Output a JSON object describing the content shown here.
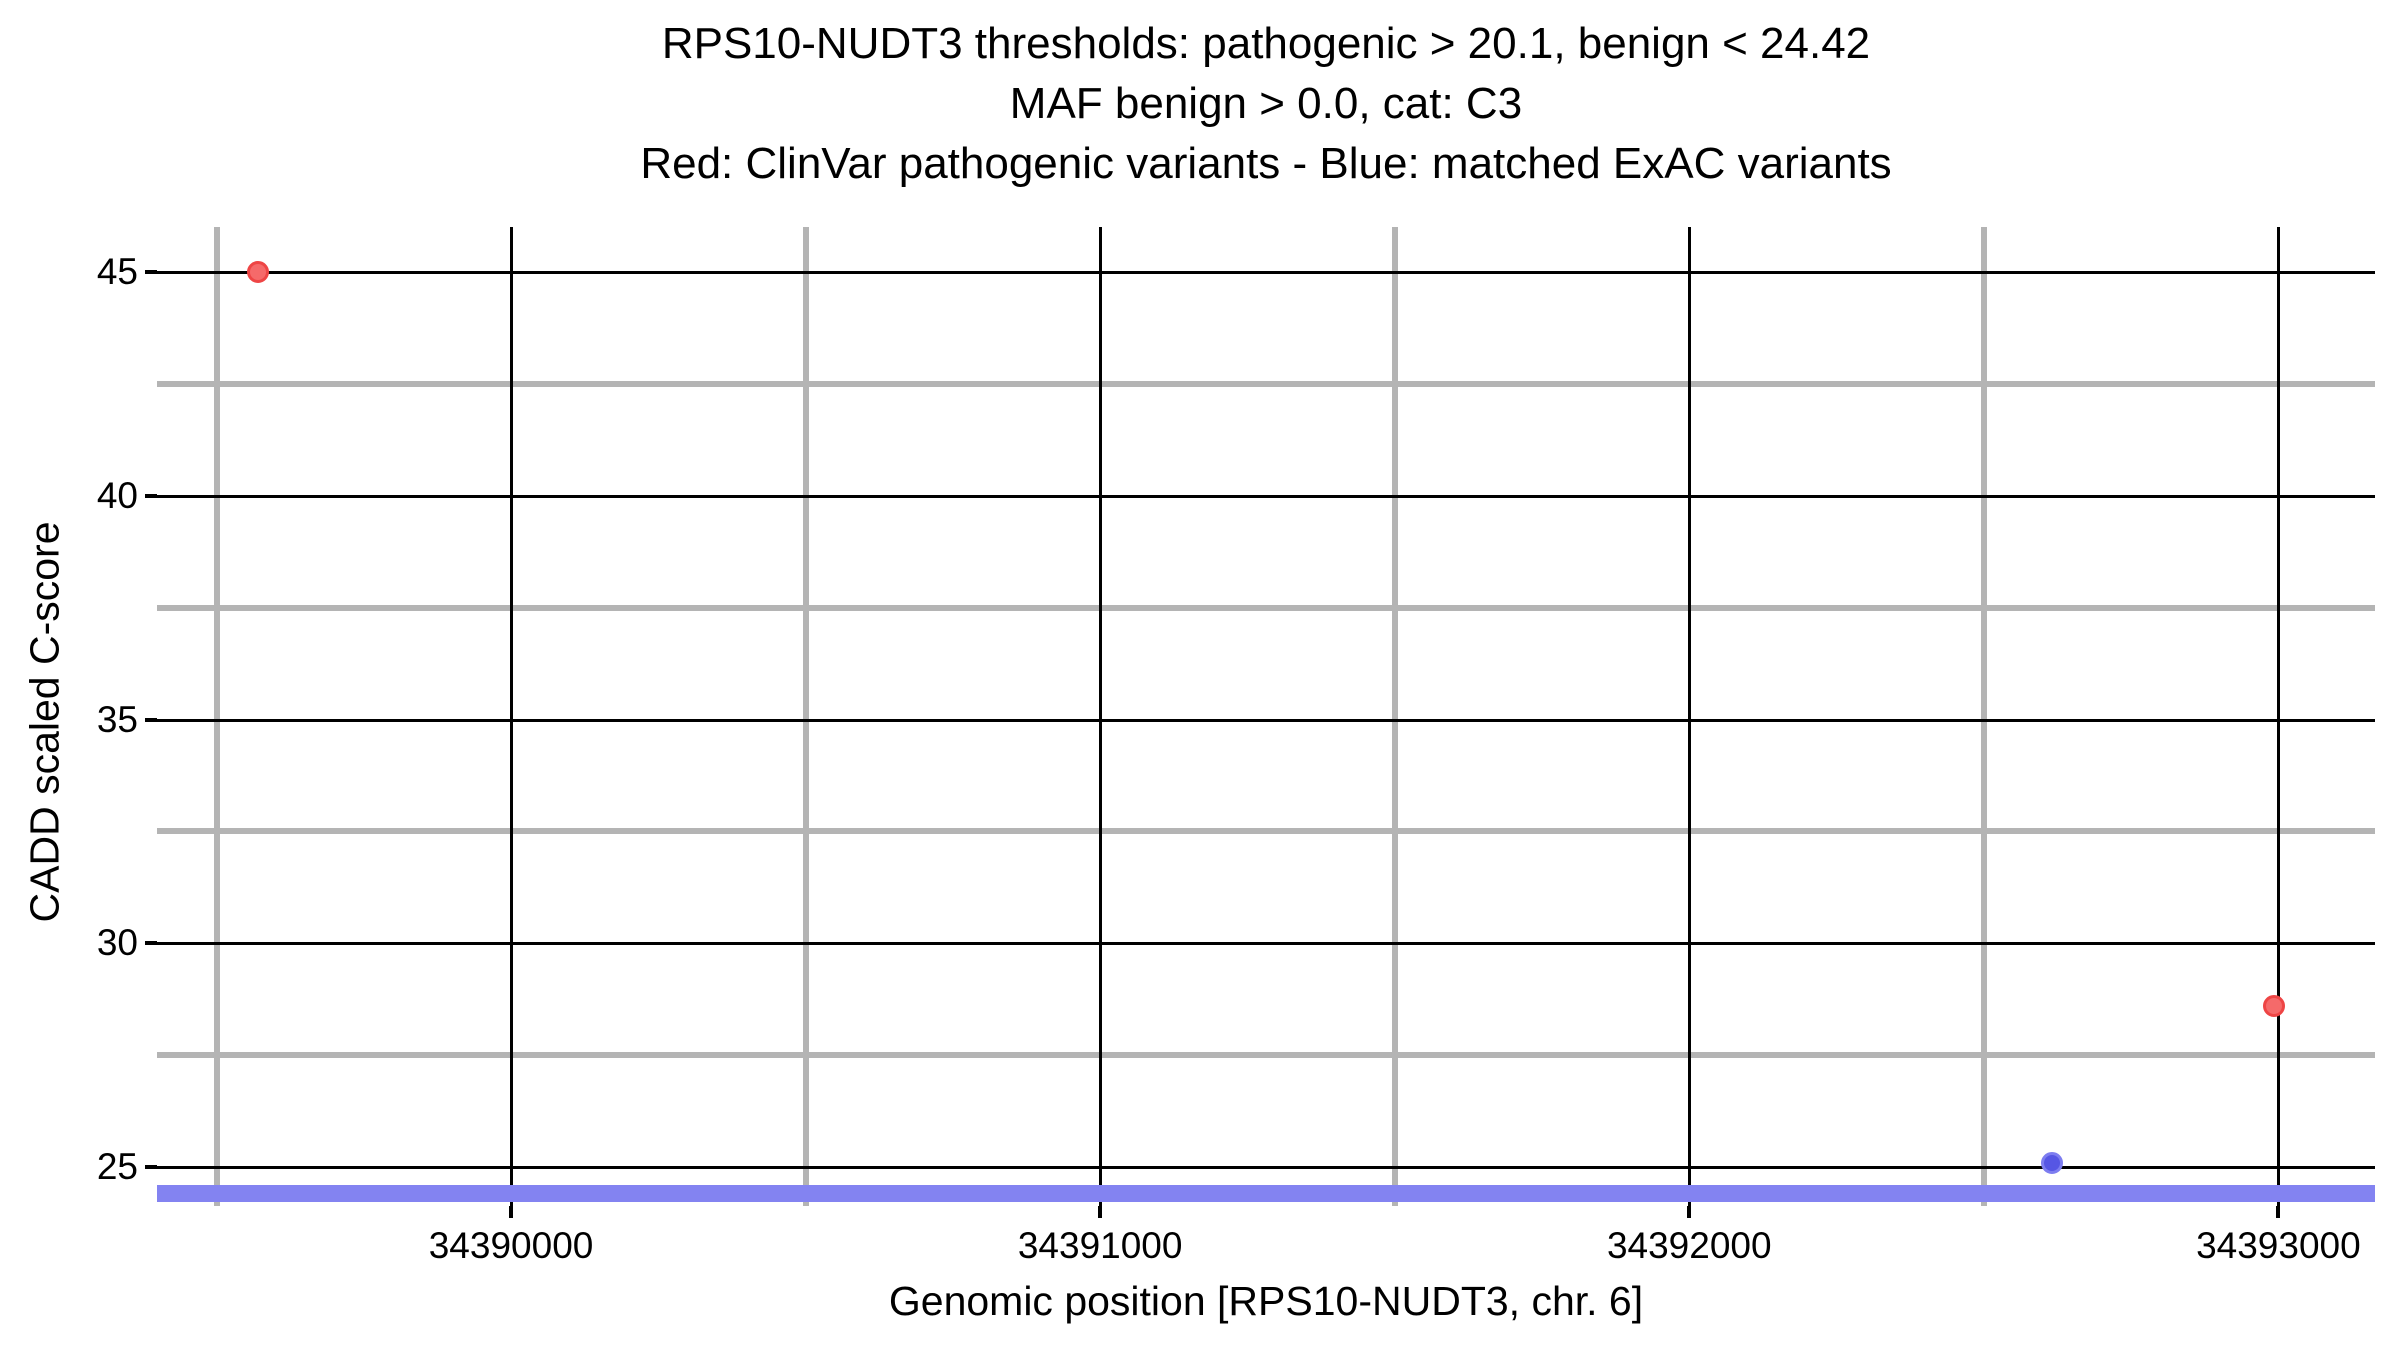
{
  "chart_data": {
    "type": "scatter",
    "title_lines": [
      "RPS10-NUDT3 thresholds: pathogenic > 20.1, benign < 24.42",
      "MAF benign > 0.0, cat: C3",
      "Red: ClinVar pathogenic variants - Blue: matched ExAC variants"
    ],
    "xlabel": "Genomic position [RPS10-NUDT3, chr. 6]",
    "ylabel": "CADD scaled C-score",
    "x_range": [
      34389399,
      34393164
    ],
    "y_range": [
      24.13,
      46.01
    ],
    "x_ticks": [
      34390000,
      34391000,
      34392000,
      34393000
    ],
    "x_tick_labels": [
      "34390000",
      "34391000",
      "34392000",
      "34393000"
    ],
    "x_minor_ticks": [
      34389500,
      34390500,
      34391500,
      34392500
    ],
    "y_ticks": [
      45,
      40,
      35,
      30,
      25
    ],
    "y_tick_labels": [
      "45",
      "40",
      "35",
      "30",
      "25"
    ],
    "y_minor_ticks": [
      42.5,
      37.5,
      32.5,
      27.5
    ],
    "grid": "major-black-minor-gray",
    "legend_position": "in-title",
    "series": [
      {
        "name": "ClinVar pathogenic variants",
        "color_key": "red",
        "points": [
          {
            "x": 34389570,
            "y": 45.0
          },
          {
            "x": 34392993,
            "y": 28.6
          }
        ]
      },
      {
        "name": "matched ExAC variants",
        "color_key": "blue",
        "points": [
          {
            "x": 34392616,
            "y": 25.1
          }
        ]
      }
    ],
    "threshold_bar": {
      "y": 24.42,
      "label": "benign threshold bar",
      "color_key": "bar"
    },
    "thresholds": {
      "pathogenic_gt": 20.1,
      "benign_lt": 24.42,
      "maf_benign_gt": 0.0,
      "category": "C3"
    },
    "colors": {
      "red": "#ee4545",
      "blue": "#5656e4",
      "bar": "#8383f1",
      "grid_major": "#000000",
      "grid_minor": "#b4b4b4",
      "text": "#000000",
      "background": "#ffffff"
    }
  }
}
